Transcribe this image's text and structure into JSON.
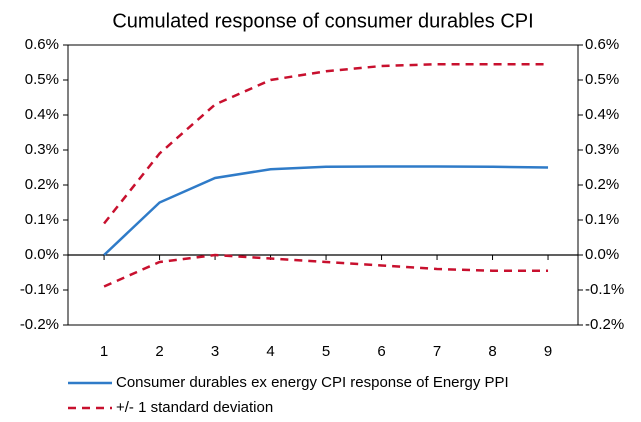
{
  "chart_data": {
    "type": "line",
    "title": "Cumulated response of consumer durables CPI",
    "x": [
      1,
      2,
      3,
      4,
      5,
      6,
      7,
      8,
      9
    ],
    "xlim": [
      0.35,
      9.54
    ],
    "xticks": [
      1,
      2,
      3,
      4,
      5,
      6,
      7,
      8,
      9
    ],
    "ylim": [
      -0.2,
      0.6
    ],
    "yticks": [
      {
        "value": -0.2,
        "label": "-0.2%"
      },
      {
        "value": -0.1,
        "label": "-0.1%"
      },
      {
        "value": 0,
        "label": "0.0%"
      },
      {
        "value": 0.1,
        "label": "0.1%"
      },
      {
        "value": 0.2,
        "label": "0.2%"
      },
      {
        "value": 0.3,
        "label": "0.3%"
      },
      {
        "value": 0.4,
        "label": "0.4%"
      },
      {
        "value": 0.5,
        "label": "0.5%"
      },
      {
        "value": 0.6,
        "label": "0.6%"
      }
    ],
    "y2lim": [
      -0.2,
      0.6
    ],
    "y2ticks": [
      {
        "value": -0.2,
        "label": "-0.2%"
      },
      {
        "value": -0.1,
        "label": "-0.1%"
      },
      {
        "value": 0,
        "label": "0.0%"
      },
      {
        "value": 0.1,
        "label": "0.1%"
      },
      {
        "value": 0.2,
        "label": "0.2%"
      },
      {
        "value": 0.3,
        "label": "0.3%"
      },
      {
        "value": 0.4,
        "label": "0.4%"
      },
      {
        "value": 0.5,
        "label": "0.5%"
      },
      {
        "value": 0.6,
        "label": "0.6%"
      }
    ],
    "series": [
      {
        "name": "Consumer durables ex energy CPI response of Energy PPI",
        "color": "#2f7bc8",
        "values": [
          0,
          0.15,
          0.22,
          0.245,
          0.252,
          0.253,
          0.253,
          0.252,
          0.25
        ]
      },
      {
        "name": "+/- 1 standard deviation",
        "color": "#c8102e",
        "dashed": true,
        "upper": [
          0.09,
          0.29,
          0.43,
          0.5,
          0.525,
          0.54,
          0.545,
          0.545,
          0.545
        ],
        "lower": [
          -0.09,
          -0.02,
          0,
          -0.01,
          -0.02,
          -0.03,
          -0.04,
          -0.045,
          -0.045
        ]
      }
    ],
    "legend": "bottom"
  }
}
